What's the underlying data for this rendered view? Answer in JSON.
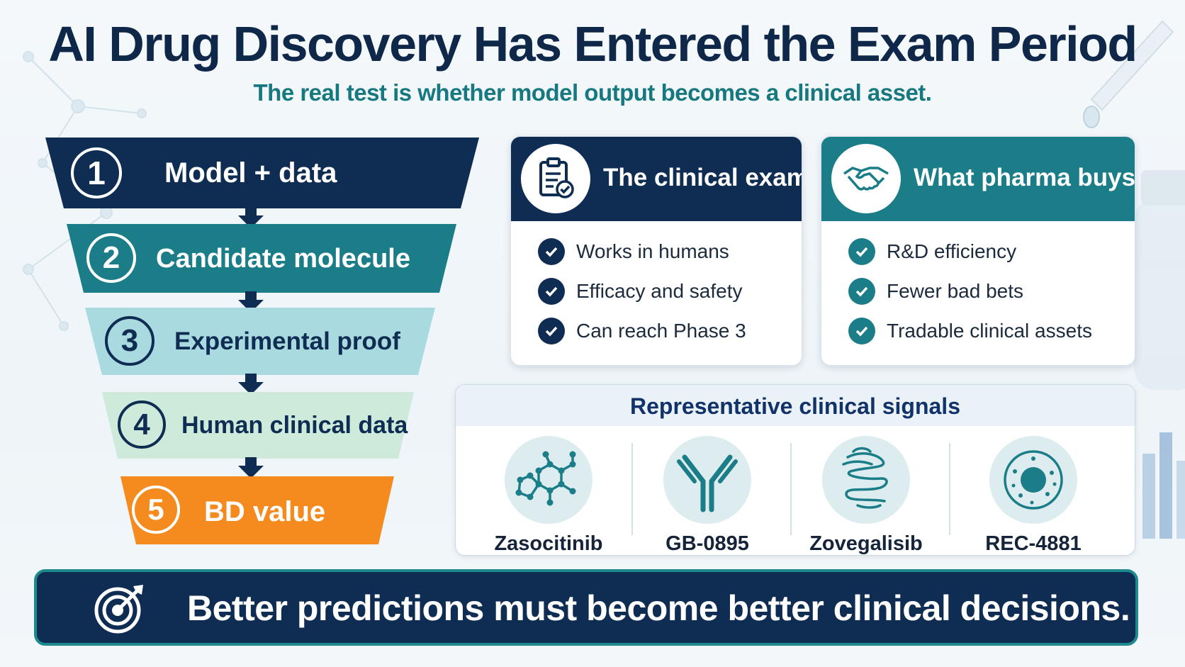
{
  "header": {
    "title": "AI Drug Discovery Has Entered the Exam Period",
    "subtitle": "The real test is whether model output becomes a clinical asset."
  },
  "funnel": {
    "stages": [
      {
        "number": "1",
        "label": "Model + data"
      },
      {
        "number": "2",
        "label": "Candidate molecule"
      },
      {
        "number": "3",
        "label": "Experimental proof"
      },
      {
        "number": "4",
        "label": "Human clinical data"
      },
      {
        "number": "5",
        "label": "BD value"
      }
    ]
  },
  "clinical_exam": {
    "title": "The clinical exam",
    "icon": "clipboard-check-icon",
    "items": [
      "Works in humans",
      "Efficacy and safety",
      "Can reach Phase 3"
    ]
  },
  "pharma_buys": {
    "title": "What pharma buys",
    "icon": "handshake-icon",
    "items": [
      "R&D efficiency",
      "Fewer bad bets",
      "Tradable clinical assets"
    ]
  },
  "signals": {
    "title": "Representative clinical signals",
    "items": [
      {
        "name": "Zasocitinib",
        "icon": "molecule-icon"
      },
      {
        "name": "GB-0895",
        "icon": "antibody-icon"
      },
      {
        "name": "Zovegalisib",
        "icon": "protein-icon"
      },
      {
        "name": "REC-4881",
        "icon": "cell-icon"
      }
    ]
  },
  "banner": {
    "text": "Better predictions must become better clinical decisions.",
    "icon": "target-icon"
  },
  "colors": {
    "navy": "#0f2c52",
    "teal": "#1b7d87",
    "light_teal": "#a8dadf",
    "mint": "#cdeadb",
    "orange": "#f58a1f"
  }
}
